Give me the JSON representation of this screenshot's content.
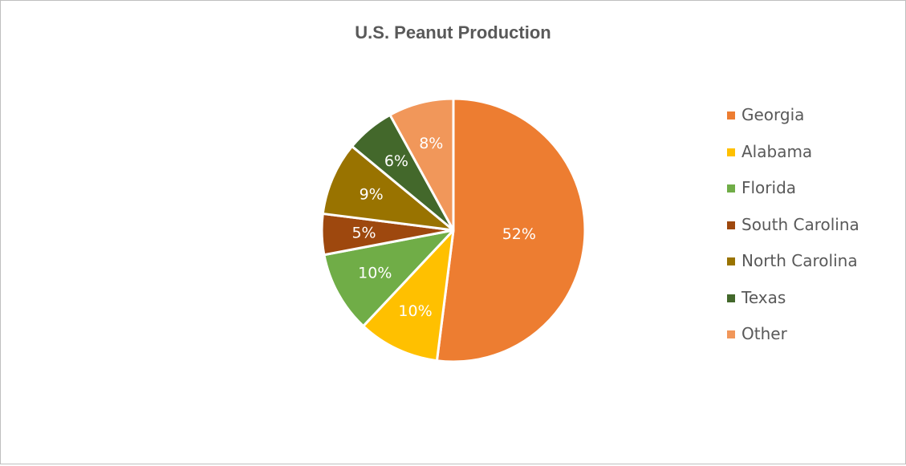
{
  "chart_data": {
    "type": "pie",
    "title": "U.S. Peanut Production",
    "categories": [
      "Georgia",
      "Alabama",
      "Florida",
      "South Carolina",
      "North Carolina",
      "Texas",
      "Other"
    ],
    "values": [
      52,
      10,
      10,
      5,
      9,
      6,
      8
    ],
    "labels": [
      "52%",
      "10%",
      "10%",
      "5%",
      "9%",
      "6%",
      "8%"
    ],
    "unit": "%",
    "colors": [
      "#ED7D31",
      "#FFC000",
      "#70AD47",
      "#9E480E",
      "#997300",
      "#43682B",
      "#F1975A"
    ],
    "legend_position": "right"
  }
}
